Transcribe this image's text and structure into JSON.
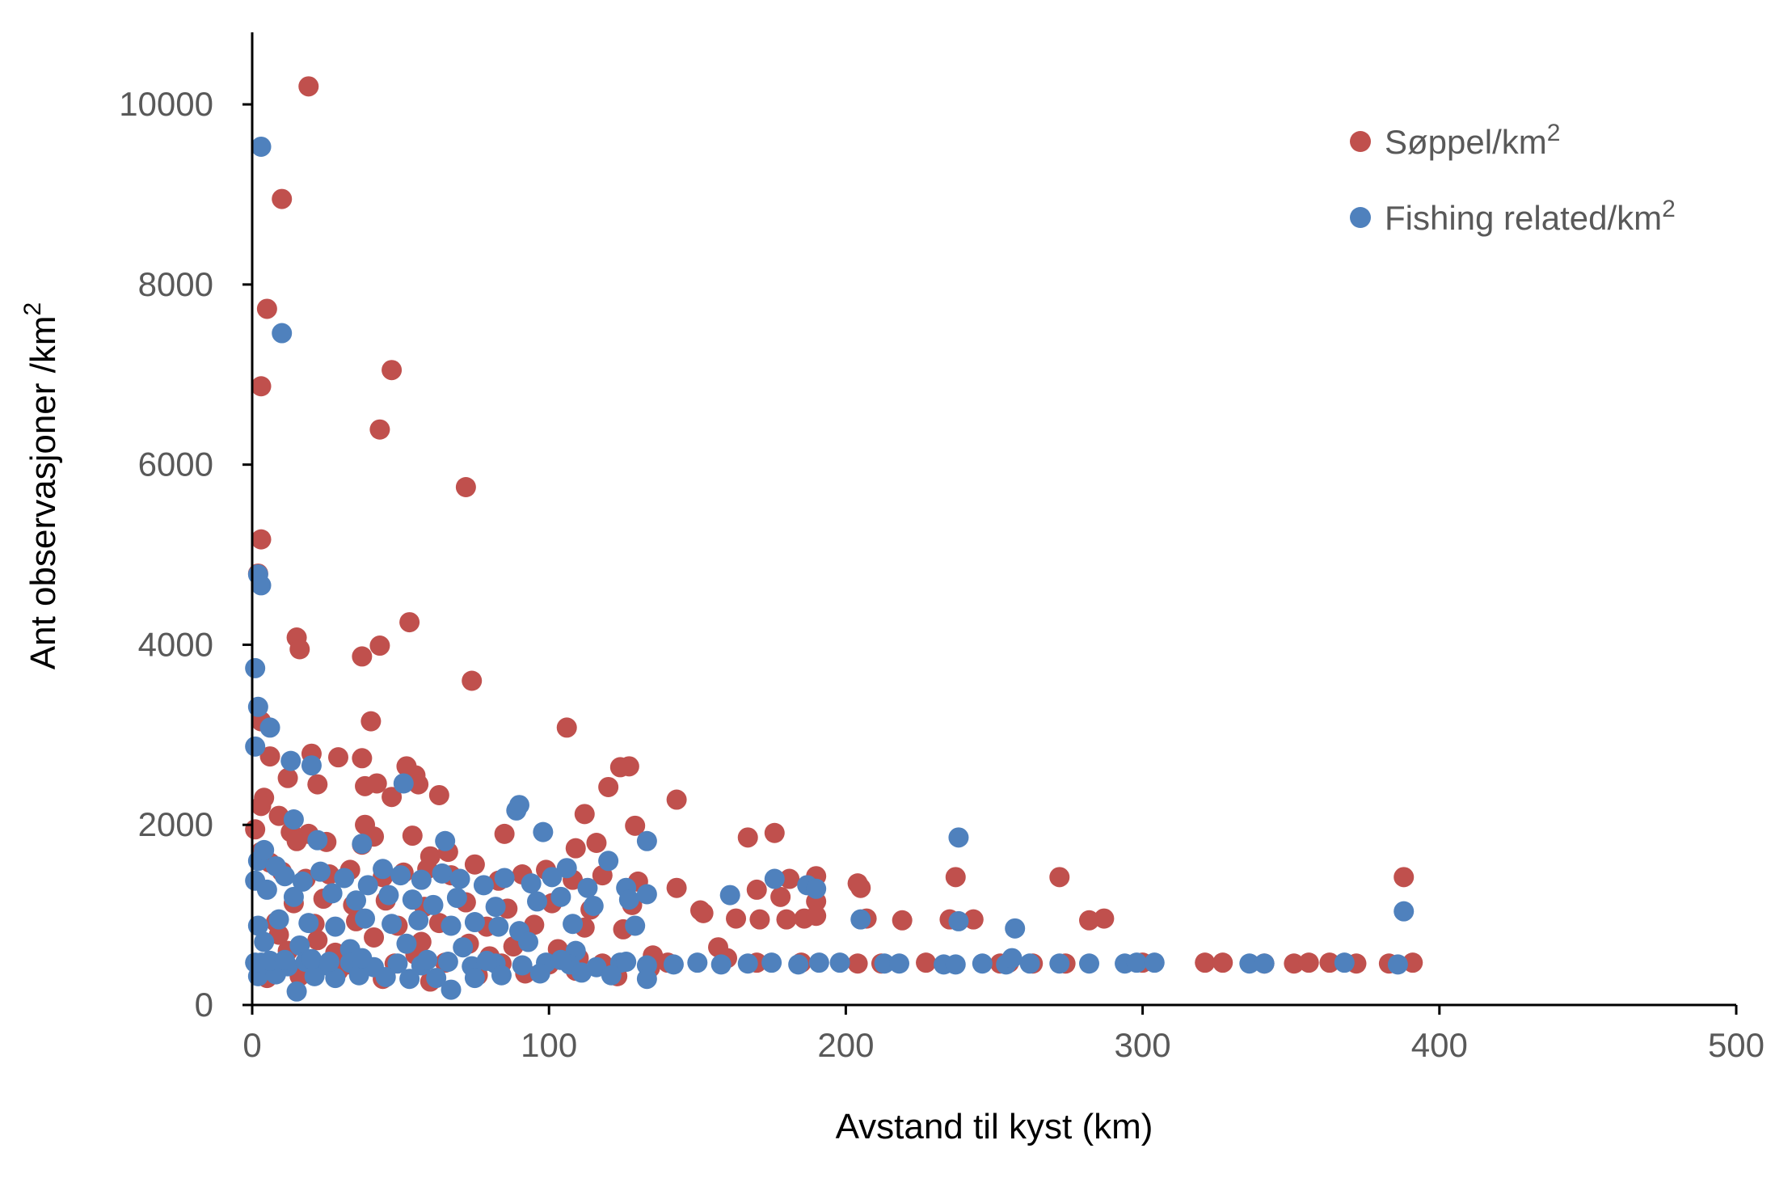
{
  "chart_data": {
    "type": "scatter",
    "xlabel": "Avstand til kyst (km)",
    "ylabel": "Ant observasjoner /km",
    "ylabel_superscript": "2",
    "xlim": [
      0,
      500
    ],
    "ylim": [
      0,
      10800
    ],
    "x_ticks": [
      0,
      100,
      200,
      300,
      400,
      500
    ],
    "y_ticks": [
      0,
      2000,
      4000,
      6000,
      8000,
      10000
    ],
    "grid": false,
    "legend_position": "top-right",
    "series": [
      {
        "name": "Søppel/km",
        "superscript": "2",
        "color": "#C0504D",
        "points": [
          [
            19,
            10200
          ],
          [
            10,
            8950
          ],
          [
            5,
            7730
          ],
          [
            3,
            6870
          ],
          [
            47,
            7050
          ],
          [
            43,
            6390
          ],
          [
            72,
            5750
          ],
          [
            3,
            5170
          ],
          [
            2,
            4790
          ],
          [
            15,
            4080
          ],
          [
            16,
            3950
          ],
          [
            37,
            3870
          ],
          [
            43,
            3990
          ],
          [
            53,
            4250
          ],
          [
            74,
            3600
          ],
          [
            40,
            3150
          ],
          [
            106,
            3080
          ],
          [
            3,
            3150
          ],
          [
            6,
            2760
          ],
          [
            20,
            2790
          ],
          [
            22,
            2450
          ],
          [
            29,
            2750
          ],
          [
            37,
            2740
          ],
          [
            38,
            2430
          ],
          [
            42,
            2460
          ],
          [
            52,
            2650
          ],
          [
            55,
            2550
          ],
          [
            47,
            2310
          ],
          [
            56,
            2450
          ],
          [
            63,
            2330
          ],
          [
            124,
            2640
          ],
          [
            127,
            2650
          ],
          [
            120,
            2420
          ],
          [
            112,
            2120
          ],
          [
            143,
            2280
          ],
          [
            4,
            2300
          ],
          [
            3,
            2210
          ],
          [
            12,
            2520
          ],
          [
            1,
            1950
          ],
          [
            9,
            2100
          ],
          [
            13,
            1920
          ],
          [
            19,
            1900
          ],
          [
            38,
            2000
          ],
          [
            41,
            1870
          ],
          [
            54,
            1880
          ],
          [
            85,
            1900
          ],
          [
            129,
            1990
          ],
          [
            167,
            1860
          ],
          [
            176,
            1910
          ],
          [
            15,
            1820
          ],
          [
            25,
            1810
          ],
          [
            37,
            1780
          ],
          [
            60,
            1650
          ],
          [
            66,
            1700
          ],
          [
            109,
            1740
          ],
          [
            116,
            1800
          ],
          [
            3,
            1700
          ],
          [
            6,
            1580
          ],
          [
            10,
            1480
          ],
          [
            18,
            1400
          ],
          [
            26,
            1450
          ],
          [
            33,
            1500
          ],
          [
            44,
            1420
          ],
          [
            51,
            1470
          ],
          [
            59,
            1510
          ],
          [
            67,
            1440
          ],
          [
            75,
            1560
          ],
          [
            83,
            1380
          ],
          [
            91,
            1450
          ],
          [
            99,
            1500
          ],
          [
            108,
            1390
          ],
          [
            118,
            1440
          ],
          [
            130,
            1370
          ],
          [
            143,
            1300
          ],
          [
            170,
            1280
          ],
          [
            181,
            1400
          ],
          [
            190,
            1430
          ],
          [
            204,
            1350
          ],
          [
            205,
            1300
          ],
          [
            178,
            1200
          ],
          [
            190,
            1150
          ],
          [
            237,
            1420
          ],
          [
            272,
            1420
          ],
          [
            388,
            1420
          ],
          [
            14,
            1130
          ],
          [
            24,
            1180
          ],
          [
            34,
            1110
          ],
          [
            45,
            1160
          ],
          [
            58,
            1090
          ],
          [
            72,
            1140
          ],
          [
            86,
            1070
          ],
          [
            101,
            1130
          ],
          [
            114,
            1060
          ],
          [
            128,
            1110
          ],
          [
            151,
            1050
          ],
          [
            152,
            1020
          ],
          [
            163,
            960
          ],
          [
            171,
            950
          ],
          [
            180,
            950
          ],
          [
            186,
            960
          ],
          [
            190,
            990
          ],
          [
            207,
            960
          ],
          [
            219,
            940
          ],
          [
            235,
            950
          ],
          [
            243,
            950
          ],
          [
            282,
            940
          ],
          [
            287,
            960
          ],
          [
            8,
            920
          ],
          [
            21,
            900
          ],
          [
            35,
            930
          ],
          [
            49,
            880
          ],
          [
            63,
            910
          ],
          [
            79,
            870
          ],
          [
            95,
            890
          ],
          [
            112,
            860
          ],
          [
            125,
            840
          ],
          [
            9,
            780
          ],
          [
            22,
            720
          ],
          [
            41,
            750
          ],
          [
            57,
            700
          ],
          [
            73,
            680
          ],
          [
            88,
            650
          ],
          [
            103,
            620
          ],
          [
            12,
            600
          ],
          [
            28,
            580
          ],
          [
            55,
            560
          ],
          [
            80,
            540
          ],
          [
            110,
            520
          ],
          [
            135,
            550
          ],
          [
            157,
            640
          ],
          [
            160,
            520
          ],
          [
            170,
            470
          ],
          [
            185,
            470
          ],
          [
            212,
            460
          ],
          [
            227,
            470
          ],
          [
            252,
            460
          ],
          [
            263,
            460
          ],
          [
            321,
            470
          ],
          [
            327,
            470
          ],
          [
            351,
            460
          ],
          [
            356,
            470
          ],
          [
            363,
            470
          ],
          [
            372,
            460
          ],
          [
            383,
            460
          ],
          [
            391,
            470
          ],
          [
            5,
            300
          ],
          [
            16,
            320
          ],
          [
            29,
            380
          ],
          [
            44,
            290
          ],
          [
            60,
            260
          ],
          [
            76,
            330
          ],
          [
            92,
            350
          ],
          [
            109,
            380
          ],
          [
            123,
            320
          ],
          [
            134,
            410
          ],
          [
            6,
            460
          ],
          [
            18,
            470
          ],
          [
            32,
            450
          ],
          [
            48,
            460
          ],
          [
            65,
            470
          ],
          [
            84,
            460
          ],
          [
            100,
            450
          ],
          [
            118,
            460
          ],
          [
            140,
            470
          ],
          [
            204,
            460
          ],
          [
            255,
            470
          ],
          [
            274,
            460
          ],
          [
            300,
            470
          ],
          [
            341,
            460
          ]
        ]
      },
      {
        "name": "Fishing related/km",
        "superscript": "2",
        "color": "#4F81BD",
        "points": [
          [
            3,
            9530
          ],
          [
            10,
            7460
          ],
          [
            2,
            4780
          ],
          [
            3,
            4660
          ],
          [
            1,
            3740
          ],
          [
            2,
            3310
          ],
          [
            6,
            3080
          ],
          [
            1,
            2870
          ],
          [
            13,
            2710
          ],
          [
            20,
            2660
          ],
          [
            51,
            2460
          ],
          [
            89,
            2160
          ],
          [
            90,
            2220
          ],
          [
            98,
            1920
          ],
          [
            14,
            2060
          ],
          [
            22,
            1830
          ],
          [
            37,
            1790
          ],
          [
            65,
            1820
          ],
          [
            120,
            1600
          ],
          [
            133,
            1820
          ],
          [
            238,
            1860
          ],
          [
            2,
            1600
          ],
          [
            4,
            1720
          ],
          [
            8,
            1540
          ],
          [
            11,
            1430
          ],
          [
            17,
            1370
          ],
          [
            23,
            1480
          ],
          [
            31,
            1410
          ],
          [
            39,
            1330
          ],
          [
            44,
            1510
          ],
          [
            50,
            1440
          ],
          [
            57,
            1390
          ],
          [
            64,
            1460
          ],
          [
            70,
            1400
          ],
          [
            78,
            1330
          ],
          [
            85,
            1410
          ],
          [
            94,
            1350
          ],
          [
            101,
            1420
          ],
          [
            106,
            1520
          ],
          [
            113,
            1300
          ],
          [
            126,
            1300
          ],
          [
            133,
            1230
          ],
          [
            161,
            1220
          ],
          [
            176,
            1400
          ],
          [
            187,
            1330
          ],
          [
            190,
            1290
          ],
          [
            1,
            1380
          ],
          [
            5,
            1280
          ],
          [
            14,
            1200
          ],
          [
            27,
            1240
          ],
          [
            35,
            1160
          ],
          [
            46,
            1220
          ],
          [
            54,
            1170
          ],
          [
            61,
            1110
          ],
          [
            69,
            1190
          ],
          [
            82,
            1090
          ],
          [
            96,
            1150
          ],
          [
            104,
            1200
          ],
          [
            115,
            1100
          ],
          [
            127,
            1170
          ],
          [
            2,
            880
          ],
          [
            9,
            950
          ],
          [
            19,
            910
          ],
          [
            28,
            870
          ],
          [
            38,
            960
          ],
          [
            47,
            900
          ],
          [
            56,
            940
          ],
          [
            67,
            880
          ],
          [
            75,
            920
          ],
          [
            83,
            870
          ],
          [
            90,
            820
          ],
          [
            108,
            900
          ],
          [
            129,
            880
          ],
          [
            205,
            950
          ],
          [
            238,
            930
          ],
          [
            257,
            850
          ],
          [
            388,
            1040
          ],
          [
            4,
            700
          ],
          [
            16,
            660
          ],
          [
            33,
            620
          ],
          [
            52,
            680
          ],
          [
            71,
            640
          ],
          [
            93,
            700
          ],
          [
            109,
            600
          ],
          [
            3,
            470
          ],
          [
            7,
            450
          ],
          [
            12,
            430
          ],
          [
            18,
            480
          ],
          [
            25,
            440
          ],
          [
            33,
            470
          ],
          [
            41,
            420
          ],
          [
            49,
            460
          ],
          [
            57,
            440
          ],
          [
            66,
            480
          ],
          [
            74,
            430
          ],
          [
            82,
            460
          ],
          [
            91,
            440
          ],
          [
            99,
            470
          ],
          [
            107,
            450
          ],
          [
            116,
            420
          ],
          [
            124,
            470
          ],
          [
            133,
            440
          ],
          [
            142,
            450
          ],
          [
            150,
            470
          ],
          [
            158,
            450
          ],
          [
            167,
            460
          ],
          [
            175,
            470
          ],
          [
            184,
            450
          ],
          [
            191,
            470
          ],
          [
            198,
            470
          ],
          [
            213,
            460
          ],
          [
            218,
            460
          ],
          [
            233,
            450
          ],
          [
            237,
            450
          ],
          [
            246,
            460
          ],
          [
            254,
            450
          ],
          [
            256,
            520
          ],
          [
            262,
            460
          ],
          [
            272,
            460
          ],
          [
            282,
            460
          ],
          [
            294,
            460
          ],
          [
            298,
            470
          ],
          [
            304,
            470
          ],
          [
            336,
            460
          ],
          [
            341,
            460
          ],
          [
            368,
            470
          ],
          [
            386,
            450
          ],
          [
            2,
            320
          ],
          [
            8,
            340
          ],
          [
            15,
            150
          ],
          [
            21,
            320
          ],
          [
            28,
            300
          ],
          [
            36,
            330
          ],
          [
            45,
            310
          ],
          [
            53,
            290
          ],
          [
            62,
            300
          ],
          [
            67,
            170
          ],
          [
            75,
            300
          ],
          [
            84,
            330
          ],
          [
            97,
            350
          ],
          [
            111,
            360
          ],
          [
            121,
            330
          ],
          [
            133,
            290
          ],
          [
            1,
            470
          ],
          [
            6,
            490
          ],
          [
            11,
            500
          ],
          [
            20,
            510
          ],
          [
            26,
            480
          ],
          [
            37,
            520
          ],
          [
            59,
            500
          ],
          [
            79,
            490
          ],
          [
            104,
            500
          ],
          [
            126,
            480
          ]
        ]
      }
    ]
  }
}
